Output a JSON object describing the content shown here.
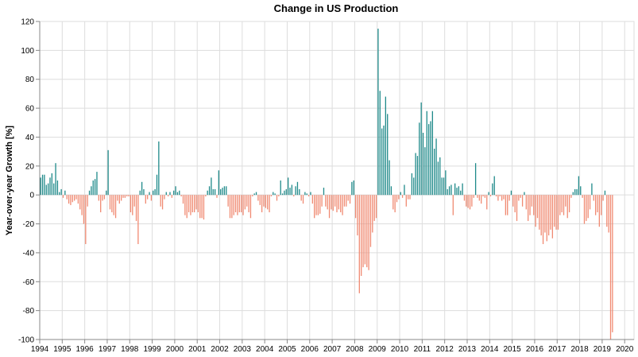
{
  "chart_data": {
    "type": "bar",
    "title": "Change in US Production",
    "xlabel": "",
    "ylabel": "Year-over-year Growth [%]",
    "ylim": [
      -100,
      120
    ],
    "yticks": [
      -100,
      -80,
      -60,
      -40,
      -20,
      0,
      20,
      40,
      60,
      80,
      100,
      120
    ],
    "xlim": [
      "1994-01",
      "2020-06"
    ],
    "xticks": [
      "1994",
      "1995",
      "1996",
      "1997",
      "1998",
      "1999",
      "2000",
      "2001",
      "2002",
      "2003",
      "2004",
      "2005",
      "2006",
      "2007",
      "2008",
      "2009",
      "2010",
      "2011",
      "2012",
      "2013",
      "2014",
      "2015",
      "2016",
      "2017",
      "2018",
      "2019",
      "2020"
    ],
    "grid": true,
    "legend": "none",
    "positive_color": "#1f8a8a",
    "negative_color": "#f08a72",
    "series": [
      {
        "start": "1994-01",
        "frequency": "monthly",
        "values": [
          12,
          14,
          14,
          7,
          8,
          12,
          15,
          8,
          22,
          10,
          2,
          4,
          -2,
          3,
          -3,
          -6,
          -7,
          -5,
          -4,
          -3,
          -6,
          -10,
          -14,
          -20,
          -34,
          -8,
          3,
          6,
          10,
          11,
          16,
          -4,
          -12,
          -4,
          -3,
          3,
          31,
          -10,
          -12,
          -14,
          -16,
          -4,
          -6,
          -4,
          -2,
          -2,
          -1,
          -1,
          -12,
          -14,
          -8,
          -18,
          -34,
          3,
          9,
          4,
          -6,
          -3,
          2,
          -4,
          3,
          4,
          14,
          37,
          -8,
          -10,
          -3,
          2,
          -1,
          2,
          -2,
          3,
          6,
          2,
          3,
          -1,
          -6,
          -14,
          -16,
          -12,
          -14,
          -12,
          -12,
          -10,
          -12,
          -16,
          -16,
          -17,
          -1,
          3,
          6,
          12,
          4,
          4,
          -2,
          17,
          4,
          5,
          6,
          6,
          -8,
          -16,
          -16,
          -14,
          -12,
          -14,
          -12,
          -12,
          -14,
          -10,
          -8,
          -12,
          -16,
          -1,
          1,
          2,
          -4,
          -7,
          -12,
          -8,
          -9,
          -10,
          -12,
          -1,
          2,
          1,
          -4,
          -1,
          10,
          1,
          3,
          4,
          12,
          5,
          7,
          -1,
          6,
          9,
          4,
          -4,
          -6,
          2,
          1,
          -1,
          2,
          -6,
          -16,
          -14,
          -14,
          -13,
          -8,
          5,
          -8,
          -10,
          -16,
          -10,
          -11,
          -8,
          -12,
          -10,
          -12,
          -14,
          -8,
          -8,
          -4,
          -6,
          9,
          10,
          -16,
          -28,
          -68,
          -56,
          -50,
          -48,
          -50,
          -52,
          -36,
          -26,
          -18,
          -16,
          115,
          72,
          46,
          48,
          68,
          56,
          24,
          6,
          -10,
          -12,
          -5,
          -3,
          2,
          -2,
          7,
          -8,
          -3,
          -3,
          15,
          12,
          29,
          27,
          50,
          64,
          43,
          33,
          58,
          49,
          51,
          58,
          32,
          39,
          23,
          26,
          12,
          12,
          17,
          4,
          6,
          7,
          -14,
          8,
          5,
          6,
          3,
          8,
          -4,
          -8,
          -9,
          -10,
          -8,
          -2,
          22,
          -2,
          -4,
          -6,
          -1,
          -2,
          -10,
          2,
          -1,
          8,
          13,
          -1,
          -4,
          -1,
          -4,
          -3,
          -14,
          -14,
          -4,
          3,
          -8,
          -12,
          -18,
          -4,
          -2,
          -8,
          2,
          -10,
          -18,
          -14,
          -8,
          -14,
          -22,
          -16,
          -24,
          -28,
          -34,
          -26,
          -32,
          -28,
          -24,
          -30,
          -22,
          -24,
          -24,
          -14,
          -12,
          -14,
          -8,
          -16,
          -12,
          -2,
          2,
          4,
          4,
          13,
          6,
          -2,
          -20,
          -18,
          -16,
          -10,
          8,
          -4,
          -14,
          -12,
          -22,
          -14,
          -4,
          3,
          -22,
          -26,
          -100,
          -95
        ]
      }
    ]
  }
}
